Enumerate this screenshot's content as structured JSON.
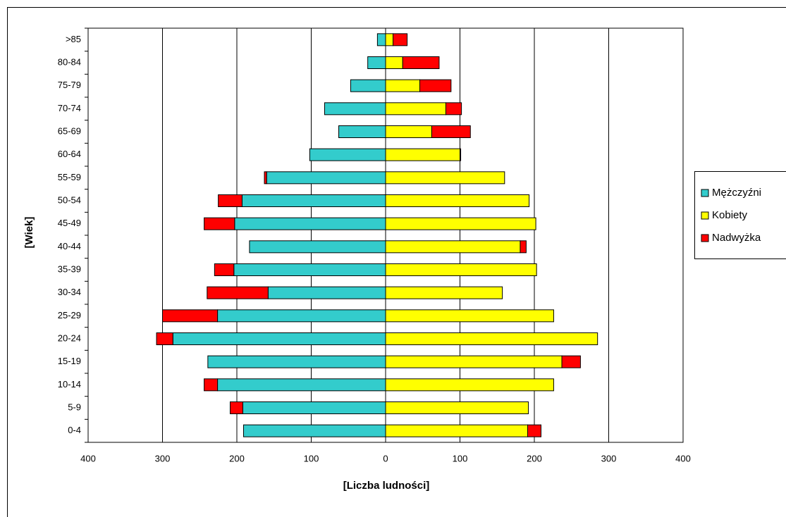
{
  "chart_data": {
    "type": "stacked-barh",
    "xlabel": "[Liczba ludności]",
    "ylabel": "[Wiek]",
    "categories": [
      "0-4",
      "5-9",
      "10-14",
      "15-19",
      "20-24",
      "25-29",
      "30-34",
      "35-39",
      "40-44",
      "45-49",
      "50-54",
      "55-59",
      "60-64",
      "65-69",
      "70-74",
      "75-79",
      "80-84",
      ">85"
    ],
    "series": [
      {
        "name": "Mężczyźni",
        "color": "#33cccc",
        "values": [
          -191,
          -192,
          -226,
          -239,
          -286,
          -226,
          -158,
          -204,
          -183,
          -203,
          -193,
          -160,
          -102,
          -63,
          -82,
          -47,
          -24,
          -11
        ]
      },
      {
        "name": "Kobiety",
        "color": "#ffff00",
        "values": [
          191,
          192,
          226,
          237,
          285,
          226,
          157,
          203,
          181,
          202,
          193,
          160,
          100,
          62,
          81,
          46,
          23,
          10
        ]
      },
      {
        "name": "Nadwyżka",
        "color": "#ff0000",
        "values": [
          18,
          -17,
          -18,
          25,
          -22,
          -74,
          -82,
          -26,
          8,
          -41,
          -32,
          -3,
          1,
          52,
          21,
          42,
          49,
          19
        ]
      }
    ],
    "xlim": [
      -400,
      400
    ],
    "xticks": [
      {
        "value": -400,
        "label": "400"
      },
      {
        "value": -300,
        "label": "300"
      },
      {
        "value": -200,
        "label": "200"
      },
      {
        "value": -100,
        "label": "100"
      },
      0,
      100,
      200,
      300,
      400
    ],
    "grid": true,
    "legend": "right"
  }
}
